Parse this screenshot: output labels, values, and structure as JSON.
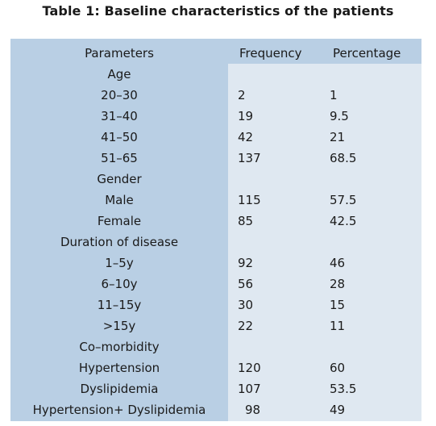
{
  "title": "Table 1: Baseline characteristics of the patients",
  "headers": {
    "parameters": "Parameters",
    "frequency": "Frequency",
    "percentage": "Percentage"
  },
  "rows": [
    {
      "parameter": "Age",
      "frequency": "",
      "percentage": ""
    },
    {
      "parameter": "20–30",
      "frequency": "2",
      "percentage": "1"
    },
    {
      "parameter": "31–40",
      "frequency": "19",
      "percentage": "9.5"
    },
    {
      "parameter": "41–50",
      "frequency": "42",
      "percentage": "21"
    },
    {
      "parameter": "51–65",
      "frequency": "137",
      "percentage": "68.5"
    },
    {
      "parameter": "Gender",
      "frequency": "",
      "percentage": ""
    },
    {
      "parameter": "Male",
      "frequency": "115",
      "percentage": "57.5"
    },
    {
      "parameter": "Female",
      "frequency": "85",
      "percentage": "42.5"
    },
    {
      "parameter": "Duration of disease",
      "frequency": "",
      "percentage": ""
    },
    {
      "parameter": "1–5y",
      "frequency": "92",
      "percentage": "46"
    },
    {
      "parameter": "6–10y",
      "frequency": "56",
      "percentage": "28"
    },
    {
      "parameter": "11–15y",
      "frequency": "30",
      "percentage": "15"
    },
    {
      "parameter": ">15y",
      "frequency": "22",
      "percentage": "11"
    },
    {
      "parameter": "Co–morbidity",
      "frequency": "",
      "percentage": ""
    },
    {
      "parameter": "Hypertension",
      "frequency": "120",
      "percentage": "60"
    },
    {
      "parameter": "Dyslipidemia",
      "frequency": "107",
      "percentage": "53.5"
    },
    {
      "parameter": "Hypertension+ Dyslipidemia",
      "frequency": "98",
      "percentage": "49"
    }
  ],
  "colors": {
    "header_bg": "#b9cfe4",
    "body_bg": "#dfe8f1"
  }
}
